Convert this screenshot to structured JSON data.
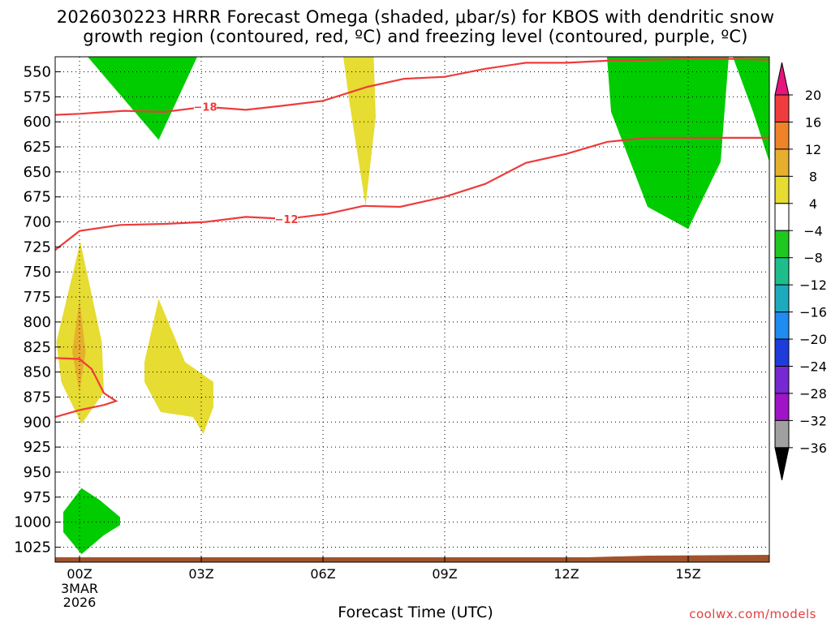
{
  "title_line1": "2026030223 HRRR Forecast Omega (shaded, μbar/s) for KBOS with dendritic snow",
  "title_line2": "growth region (contoured, red, ºC) and freezing level (contoured, purple, ºC)",
  "xlabel": "Forecast Time (UTC)",
  "credit": "coolwx.com/models",
  "chart_data": {
    "type": "time-height cross section",
    "x_unit": "forecast hour",
    "xlim": [
      -0.6,
      17
    ],
    "ylim_hpa": [
      1040,
      535
    ],
    "y_ticks": [
      550,
      575,
      600,
      625,
      650,
      675,
      700,
      725,
      750,
      775,
      800,
      825,
      850,
      875,
      900,
      925,
      950,
      975,
      1000,
      1025
    ],
    "x_ticks": [
      {
        "hour": 0,
        "label": "00Z",
        "sub": [
          "3MAR",
          "2026"
        ]
      },
      {
        "hour": 3,
        "label": "03Z"
      },
      {
        "hour": 6,
        "label": "06Z"
      },
      {
        "hour": 9,
        "label": "09Z"
      },
      {
        "hour": 12,
        "label": "12Z"
      },
      {
        "hour": 15,
        "label": "15Z"
      }
    ],
    "grid": true,
    "colorbar": {
      "tick_labels": [
        "20",
        "16",
        "12",
        "8",
        "4",
        "−4",
        "−8",
        "−12",
        "−16",
        "−20",
        "−24",
        "−28",
        "−32",
        "−36"
      ],
      "colors": [
        "#f03c3c",
        "#f08228",
        "#e6af2d",
        "#e6dc32",
        "#ffffff",
        "#1ec81e",
        "#1ebe8c",
        "#1eaabe",
        "#1e8cf0",
        "#1e3cdc",
        "#7828d2",
        "#a014c8",
        "#a0a0a0"
      ],
      "top_arrow_color": "#e6147d",
      "bottom_arrow_color": "#000000"
    },
    "omega_regions": [
      {
        "class": "green",
        "color": "#00cc00",
        "points": [
          [
            0.2,
            535
          ],
          [
            2.9,
            535
          ],
          [
            1.95,
            618
          ]
        ]
      },
      {
        "class": "yellow",
        "color": "#e6dc32",
        "points": [
          [
            6.5,
            535
          ],
          [
            7.25,
            535
          ],
          [
            7.3,
            595
          ],
          [
            7.05,
            684
          ],
          [
            6.65,
            580
          ]
        ]
      },
      {
        "class": "green",
        "color": "#00cc00",
        "points": [
          [
            13.0,
            535
          ],
          [
            16.0,
            535
          ],
          [
            15.8,
            640
          ],
          [
            15.0,
            707
          ],
          [
            14.0,
            685
          ],
          [
            13.1,
            590
          ]
        ]
      },
      {
        "class": "green",
        "color": "#00cc00",
        "points": [
          [
            16.1,
            535
          ],
          [
            17.0,
            535
          ],
          [
            17.0,
            640
          ],
          [
            16.6,
            590
          ]
        ]
      },
      {
        "class": "yellow",
        "color": "#e6dc32",
        "points": [
          [
            -0.57,
            820
          ],
          [
            0.02,
            720
          ],
          [
            0.55,
            820
          ],
          [
            0.6,
            870
          ],
          [
            0.05,
            902
          ],
          [
            -0.45,
            860
          ]
        ]
      },
      {
        "class": "orange",
        "color": "#e6af2d",
        "points": [
          [
            -0.18,
            830
          ],
          [
            0.0,
            778
          ],
          [
            0.15,
            830
          ],
          [
            0.0,
            870
          ]
        ]
      },
      {
        "class": "yellow",
        "color": "#e6dc32",
        "points": [
          [
            1.6,
            840
          ],
          [
            1.95,
            777
          ],
          [
            2.6,
            840
          ],
          [
            3.3,
            860
          ],
          [
            3.3,
            885
          ],
          [
            3.05,
            912
          ],
          [
            2.8,
            895
          ],
          [
            2.0,
            890
          ],
          [
            1.6,
            860
          ]
        ]
      },
      {
        "class": "green",
        "color": "#00cc00",
        "points": [
          [
            -0.4,
            990
          ],
          [
            0.05,
            966
          ],
          [
            0.5,
            978
          ],
          [
            1.0,
            995
          ],
          [
            1.0,
            1003
          ],
          [
            0.6,
            1013
          ],
          [
            0.05,
            1032
          ],
          [
            -0.4,
            1010
          ]
        ]
      }
    ],
    "contours_dgz": [
      {
        "label": "−18",
        "label_at": [
          3.1,
          585
        ],
        "points": [
          [
            -0.6,
            593
          ],
          [
            0,
            592
          ],
          [
            1.1,
            589
          ],
          [
            2.1,
            590
          ],
          [
            3.1,
            585
          ],
          [
            4.1,
            588
          ],
          [
            5.0,
            584
          ],
          [
            6.0,
            579
          ],
          [
            7.1,
            565
          ],
          [
            8.0,
            557
          ],
          [
            9.0,
            555
          ],
          [
            10.0,
            547
          ],
          [
            11.0,
            541
          ],
          [
            12.0,
            541
          ],
          [
            13.0,
            539
          ],
          [
            14.0,
            538
          ],
          [
            15.0,
            537
          ],
          [
            16.0,
            537
          ],
          [
            17.0,
            538
          ]
        ]
      },
      {
        "label": "−12",
        "label_at": [
          5.1,
          697
        ],
        "points": [
          [
            -0.6,
            728
          ],
          [
            0,
            709
          ],
          [
            1.0,
            703
          ],
          [
            2.1,
            702
          ],
          [
            3.1,
            700
          ],
          [
            4.1,
            695
          ],
          [
            5.1,
            697
          ],
          [
            6.1,
            692
          ],
          [
            7.0,
            684
          ],
          [
            7.9,
            685
          ],
          [
            9.0,
            675
          ],
          [
            10.0,
            662
          ],
          [
            11.0,
            641
          ],
          [
            12.0,
            632
          ],
          [
            13.0,
            620
          ],
          [
            14.0,
            616
          ],
          [
            15.0,
            616
          ],
          [
            16.0,
            616
          ],
          [
            17.0,
            616
          ]
        ]
      },
      {
        "label": "",
        "label_at": null,
        "points": [
          [
            -0.6,
            836
          ],
          [
            0.0,
            837
          ],
          [
            0.3,
            847
          ],
          [
            0.6,
            871
          ],
          [
            0.9,
            879
          ],
          [
            0.6,
            883
          ],
          [
            0.0,
            888
          ],
          [
            -0.6,
            895
          ]
        ]
      }
    ],
    "terrain_color": "#a0522d"
  }
}
